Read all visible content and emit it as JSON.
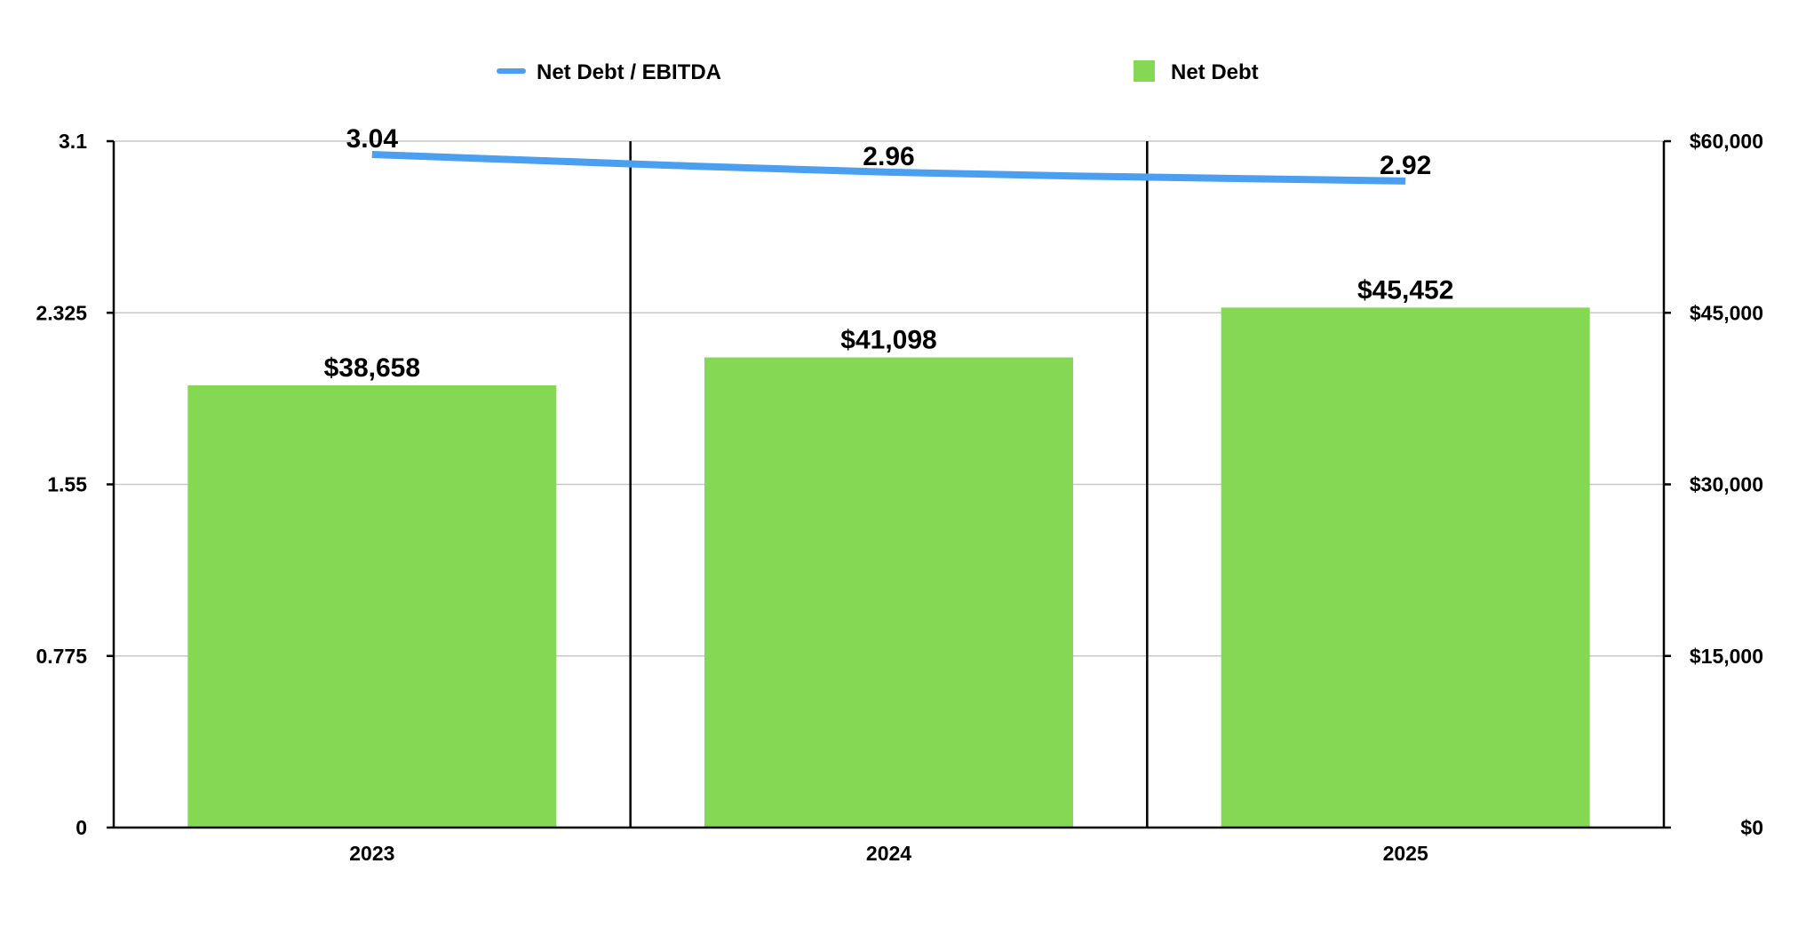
{
  "chart_data": {
    "type": "bar",
    "categories": [
      "2023",
      "2024",
      "2025"
    ],
    "series": [
      {
        "name": "Net Debt",
        "kind": "bar",
        "axis": "right",
        "values": [
          38658,
          41098,
          45452
        ],
        "labels": [
          "$38,658",
          "$41,098",
          "$45,452"
        ],
        "color": "#84d854"
      },
      {
        "name": "Net Debt / EBITDA",
        "kind": "line",
        "axis": "left",
        "values": [
          3.04,
          2.96,
          2.92
        ],
        "labels": [
          "3.04",
          "2.96",
          "2.92"
        ],
        "color": "#4a9ff0"
      }
    ],
    "left_axis": {
      "ylim": [
        0,
        3.1
      ],
      "ticks": [
        0,
        0.775,
        1.55,
        2.325,
        3.1
      ],
      "tick_labels": [
        "0",
        "0.775",
        "1.55",
        "2.325",
        "3.1"
      ]
    },
    "right_axis": {
      "ylim": [
        0,
        60000
      ],
      "ticks": [
        0,
        15000,
        30000,
        45000,
        60000
      ],
      "tick_labels": [
        "$0",
        "$15,000",
        "$30,000",
        "$45,000",
        "$60,000"
      ]
    },
    "legend": {
      "placement": "top",
      "entries": [
        {
          "label": "Net Debt / EBITDA",
          "marker": "line",
          "color": "#4a9ff0"
        },
        {
          "label": "Net Debt",
          "marker": "square",
          "color": "#84d854"
        }
      ]
    },
    "grid": true
  }
}
